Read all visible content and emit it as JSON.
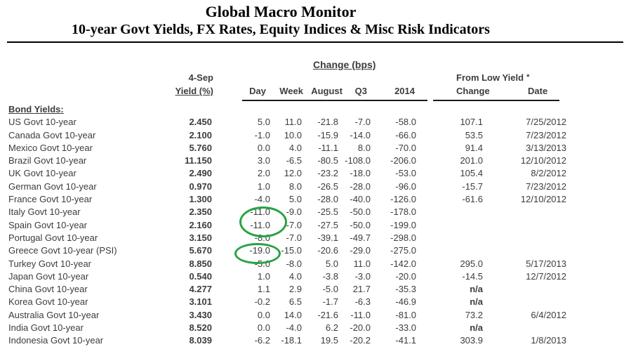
{
  "header": {
    "title": "Global Macro Monitor",
    "subtitle": "10-year Govt Yields, FX Rates, Equity Indices & Misc Risk Indicators"
  },
  "table": {
    "group_headers": {
      "change_bps": "Change (bps)",
      "from_low_yield": "From Low Yield",
      "asterisk": "*"
    },
    "col_headers": {
      "yield_top": "4-Sep",
      "yield": "Yield (%)",
      "day": "Day",
      "week": "Week",
      "august": "August",
      "q3": "Q3",
      "y2014": "2014",
      "change": "Change",
      "date": "Date"
    },
    "section_label": "Bond Yields:",
    "rows": [
      {
        "label": "US Govt 10-year",
        "yield": "2.450",
        "day": "5.0",
        "week": "11.0",
        "august": "-21.8",
        "q3": "-7.0",
        "y2014": "-58.0",
        "change": "107.1",
        "date": "7/25/2012"
      },
      {
        "label": "Canada Govt 10-year",
        "yield": "2.100",
        "day": "-1.0",
        "week": "10.0",
        "august": "-15.9",
        "q3": "-14.0",
        "y2014": "-66.0",
        "change": "53.5",
        "date": "7/23/2012"
      },
      {
        "label": "Mexico Govt 10-year",
        "yield": "5.760",
        "day": "0.0",
        "week": "4.0",
        "august": "-11.1",
        "q3": "8.0",
        "y2014": "-70.0",
        "change": "91.4",
        "date": "3/13/2013"
      },
      {
        "label": "Brazil Govt 10-year",
        "yield": "11.150",
        "day": "3.0",
        "week": "-6.5",
        "august": "-80.5",
        "q3": "-108.0",
        "y2014": "-206.0",
        "change": "201.0",
        "date": "12/10/2012"
      },
      {
        "label": "UK Govt 10-year",
        "yield": "2.490",
        "day": "2.0",
        "week": "12.0",
        "august": "-23.2",
        "q3": "-18.0",
        "y2014": "-53.0",
        "change": "105.4",
        "date": "8/2/2012"
      },
      {
        "label": "German Govt 10-year",
        "yield": "0.970",
        "day": "1.0",
        "week": "8.0",
        "august": "-26.5",
        "q3": "-28.0",
        "y2014": "-96.0",
        "change": "-15.7",
        "date": "7/23/2012"
      },
      {
        "label": "France Govt 10-year",
        "yield": "1.300",
        "day": "-4.0",
        "week": "5.0",
        "august": "-28.0",
        "q3": "-40.0",
        "y2014": "-126.0",
        "change": "-61.6",
        "date": "12/10/2012"
      },
      {
        "label": "Italy Govt 10-year",
        "yield": "2.350",
        "day": "-11.0",
        "week": "-9.0",
        "august": "-25.5",
        "q3": "-50.0",
        "y2014": "-178.0",
        "change": "",
        "date": ""
      },
      {
        "label": "Spain Govt 10-year",
        "yield": "2.160",
        "day": "-11.0",
        "week": "-7.0",
        "august": "-27.5",
        "q3": "-50.0",
        "y2014": "-199.0",
        "change": "",
        "date": ""
      },
      {
        "label": "Portugal Govt 10-year",
        "yield": "3.150",
        "day": "-8.0",
        "week": "-7.0",
        "august": "-39.1",
        "q3": "-49.7",
        "y2014": "-298.0",
        "change": "",
        "date": ""
      },
      {
        "label": "Greece Govt 10-year (PSI)",
        "yield": "5.670",
        "day": "-19.0",
        "week": "-15.0",
        "august": "-20.6",
        "q3": "-29.0",
        "y2014": "-275.0",
        "change": "",
        "date": ""
      },
      {
        "label": "Turkey Govt 10-year",
        "yield": "8.850",
        "day": "-5.0",
        "week": "-8.0",
        "august": "5.0",
        "q3": "11.0",
        "y2014": "-142.0",
        "change": "295.0",
        "date": "5/17/2013"
      },
      {
        "label": "Japan Govt 10-year",
        "yield": "0.540",
        "day": "1.0",
        "week": "4.0",
        "august": "-3.8",
        "q3": "-3.0",
        "y2014": "-20.0",
        "change": "-14.5",
        "date": "12/7/2012"
      },
      {
        "label": "China Govt 10-year",
        "yield": "4.277",
        "day": "1.1",
        "week": "2.9",
        "august": "-5.0",
        "q3": "21.7",
        "y2014": "-35.3",
        "change": "n/a",
        "date": ""
      },
      {
        "label": "Korea Govt 10-year",
        "yield": "3.101",
        "day": "-0.2",
        "week": "6.5",
        "august": "-1.7",
        "q3": "-6.3",
        "y2014": "-46.9",
        "change": "n/a",
        "date": ""
      },
      {
        "label": "Australia Govt 10-year",
        "yield": "3.430",
        "day": "0.0",
        "week": "14.0",
        "august": "-21.6",
        "q3": "-11.0",
        "y2014": "-81.0",
        "change": "73.2",
        "date": "6/4/2012"
      },
      {
        "label": "India Govt 10-year",
        "yield": "8.520",
        "day": "0.0",
        "week": "-4.0",
        "august": "6.2",
        "q3": "-20.0",
        "y2014": "-33.0",
        "change": "n/a",
        "date": ""
      },
      {
        "label": "Indonesia Govt 10-year",
        "yield": "8.039",
        "day": "-6.2",
        "week": "-18.1",
        "august": "19.5",
        "q3": "-20.2",
        "y2014": "-41.1",
        "change": "303.9",
        "date": "1/8/2013"
      }
    ]
  },
  "annotations": {
    "circle_color": "#27a342",
    "circled_values": [
      "Italy Day -11.0",
      "Spain Day -11.0",
      "Greece Day -19.0"
    ]
  }
}
